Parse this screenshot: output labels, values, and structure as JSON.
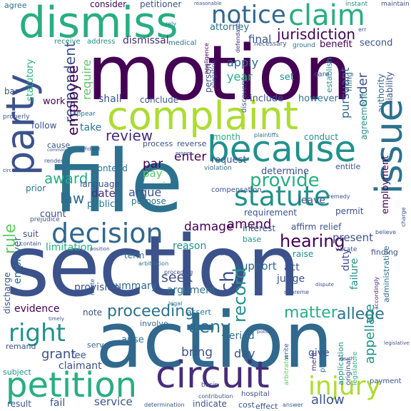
{
  "words": {
    "motion": "motion",
    "section": "section",
    "action": "action",
    "file": "file",
    "complaint": "complaint",
    "dismiss": "dismiss",
    "party": "party",
    "because": "because",
    "issue": "issue",
    "petition": "petition",
    "circuit": "circuit",
    "decision": "decision",
    "statute": "statute",
    "claim": "claim",
    "notice": "notice",
    "provide": "provide",
    "injury": "injury",
    "right": "right",
    "jurisdiction": "jurisdiction",
    "hearing": "hearing",
    "proceeding": "proceeding",
    "allege": "allege",
    "matter": "matter",
    "respondent": "respondent",
    "employee": "employee",
    "review": "review",
    "deny": "deny",
    "grant": "grant",
    "amend": "amend",
    "damage": "damage",
    "rule": "rule",
    "law": "law",
    "award": "award",
    "record": "record",
    "seek": "seek",
    "ch": "ch",
    "enter": "enter",
    "pay": "pay",
    "par": "par",
    "determine": "determine",
    "apply": "apply",
    "year": "year",
    "attorney": "attorney",
    "final": "final",
    "dismissal": "dismissal",
    "require": "require",
    "pursuant": "pursuant",
    "order": "order",
    "appellate": "appellate",
    "employer": "employer",
    "evidence": "evidence",
    "allow": "allow",
    "fail": "fail",
    "service": "service",
    "result": "result",
    "bring": "bring",
    "day": "day",
    "period": "period",
    "claimant": "claimant",
    "fee": "fee",
    "support": "support",
    "act": "act",
    "judge": "judge",
    "duty": "duty",
    "present": "present",
    "argument": "argument",
    "summary": "summary",
    "provision": "provision",
    "note": "note",
    "limitation": "limitation",
    "reason": "reason",
    "base": "base",
    "term": "term",
    "count": "count",
    "date": "date",
    "public": "public",
    "language": "language",
    "contend": "contend",
    "argue": "argue",
    "purpose": "purpose",
    "exist": "exist",
    "request": "request",
    "leave": "leave",
    "requirement": "requirement",
    "entitle": "entitle",
    "interest": "interest",
    "affirm": "affirm",
    "relief": "relief",
    "raise": "raise",
    "consider": "consider",
    "petitioner": "petitioner",
    "agree": "agree",
    "receive": "receive",
    "address": "address",
    "medical": "medical",
    "benefit": "benefit",
    "second": "second",
    "set": "set",
    "include": "include",
    "however": "however",
    "conclude": "conclude",
    "shall": "shall",
    "work": "work",
    "take": "take",
    "follow": "follow",
    "prior": "prior",
    "suit": "suit",
    "discharge": "discharge",
    "remand": "remand",
    "subject": "subject",
    "arise": "arise",
    "serve": "serve",
    "involve": "involve",
    "assert": "assert",
    "failure": "failure",
    "agreement": "agreement",
    "authority": "authority",
    "liability": "liability",
    "employment": "employment",
    "establish": "establish",
    "filing": "filing",
    "statutory": "statutory",
    "person": "person",
    "month": "month",
    "conduct": "conduct",
    "permit": "permit",
    "finding": "finding",
    "application": "application",
    "give": "give",
    "pleading": "pleading",
    "administrative": "administrative",
    "original": "original",
    "payment": "payment",
    "care": "care",
    "bar": "bar",
    "appear": "appear",
    "cause": "cause",
    "compensation": "compensation",
    "process": "process",
    "reverse": "reverse",
    "proper": "proper",
    "discovery": "discovery",
    "negligence": "negligence",
    "allegation": "allegation",
    "defendants": "defendants",
    "ground": "ground",
    "necessary": "necessary",
    "reasonable": "reasonable",
    "instant": "instant",
    "maintain": "maintain",
    "rely": "rely",
    "err": "err",
    "arbitrator": "arbitrator",
    "hospital": "hospital",
    "contribution": "contribution",
    "determination": "determination",
    "indicate": "indicate",
    "cost": "cost",
    "effect": "effect",
    "answer": "answer",
    "prejudice": "prejudice",
    "contain": "contain",
    "position": "position",
    "render": "render",
    "violation": "violation",
    "plaintiffs": "plaintiffs",
    "arbitration": "arbitration",
    "procedure": "procedure",
    "supreme": "supreme",
    "decide": "decide",
    "vacate": "vacate",
    "believe": "believe",
    "remedy": "remedy",
    "circumstance": "circumstance",
    "common": "common",
    "affidavit": "affidavit",
    "properly": "properly",
    "timely": "timely",
    "relate": "relate",
    "legal": "legal",
    "dispute": "dispute",
    "merit": "merit",
    "write": "write",
    "policy": "policy",
    "basis": "basis",
    "legislature": "legislature",
    "accordingly": "accordingly",
    "charge": "charge",
    "death": "death",
    "legislative": "legislative"
  },
  "palette": {
    "dark_purple": "#440154",
    "indigo": "#472c7a",
    "blue": "#3b528b",
    "steel": "#31688e",
    "teal_blue": "#2c728e",
    "teal": "#21918c",
    "green": "#28ae80",
    "light_green": "#5ec962",
    "lime": "#addc30",
    "yellow": "#fde725"
  }
}
